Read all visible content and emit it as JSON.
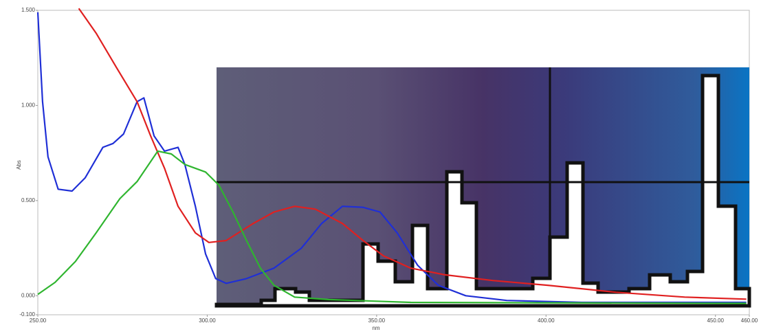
{
  "chart_data": {
    "type": "line",
    "x_label": "nm",
    "y_label": "Abs",
    "xlim": [
      250,
      460
    ],
    "xticks": [
      {
        "value": 250,
        "label": "250.00"
      },
      {
        "value": 300,
        "label": "300.00"
      },
      {
        "value": 350,
        "label": "350.00"
      },
      {
        "value": 400,
        "label": "400.00"
      },
      {
        "value": 450,
        "label": "450.00"
      },
      {
        "value": 460,
        "label": "460.00"
      }
    ],
    "ylim": [
      -0.1,
      1.5
    ],
    "yticks": [
      {
        "value": -0.1,
        "label": "-0.100"
      },
      {
        "value": 0,
        "label": "0.000"
      },
      {
        "value": 0.5,
        "label": "0.500"
      },
      {
        "value": 1,
        "label": "1.000"
      },
      {
        "value": 1.5,
        "label": "1.500"
      }
    ],
    "series": [
      {
        "color": "#1f2fd6",
        "x": [
          250,
          251.4,
          253,
          256,
          260.1,
          264,
          269.2,
          272.2,
          275.3,
          279.3,
          281.3,
          284.3,
          287.4,
          291.4,
          293.4,
          296.5,
          299.5,
          302.5,
          305.6,
          311.6,
          319.7,
          327.8,
          333.8,
          339.9,
          345.9,
          351,
          356.1,
          362.1,
          368.2,
          376.3,
          388.4,
          410.6,
          459.1
        ],
        "values": [
          1.49,
          1.02,
          0.73,
          0.56,
          0.55,
          0.62,
          0.78,
          0.8,
          0.85,
          1.02,
          1.04,
          0.84,
          0.76,
          0.78,
          0.69,
          0.47,
          0.22,
          0.09,
          0.065,
          0.09,
          0.145,
          0.25,
          0.38,
          0.47,
          0.465,
          0.44,
          0.33,
          0.16,
          0.055,
          0,
          -0.025,
          -0.035,
          -0.035
        ]
      },
      {
        "color": "#e02020",
        "x": [
          262.1,
          267.2,
          273.2,
          279.3,
          283.3,
          287.4,
          291.4,
          296.5,
          300.5,
          305.6,
          313.6,
          319.7,
          325.8,
          331.9,
          339.9,
          346,
          352,
          360.1,
          370.2,
          384.3,
          400.5,
          420.7,
          440.9,
          459.1
        ],
        "values": [
          1.51,
          1.38,
          1.2,
          1.02,
          0.84,
          0.67,
          0.47,
          0.33,
          0.28,
          0.29,
          0.38,
          0.44,
          0.47,
          0.455,
          0.38,
          0.29,
          0.21,
          0.145,
          0.11,
          0.08,
          0.055,
          0.018,
          -0.007,
          -0.018
        ]
      },
      {
        "color": "#2fb52f",
        "x": [
          250,
          255.1,
          261.1,
          267.2,
          274.2,
          279.3,
          285.4,
          289.4,
          293.4,
          299.5,
          303.5,
          307.6,
          311.6,
          315.7,
          319.7,
          325.8,
          335.9,
          360.1,
          459.1
        ],
        "values": [
          0.007,
          0.07,
          0.18,
          0.33,
          0.51,
          0.6,
          0.76,
          0.745,
          0.69,
          0.65,
          0.58,
          0.44,
          0.29,
          0.145,
          0.055,
          -0.007,
          -0.02,
          -0.035,
          -0.04
        ]
      }
    ]
  }
}
